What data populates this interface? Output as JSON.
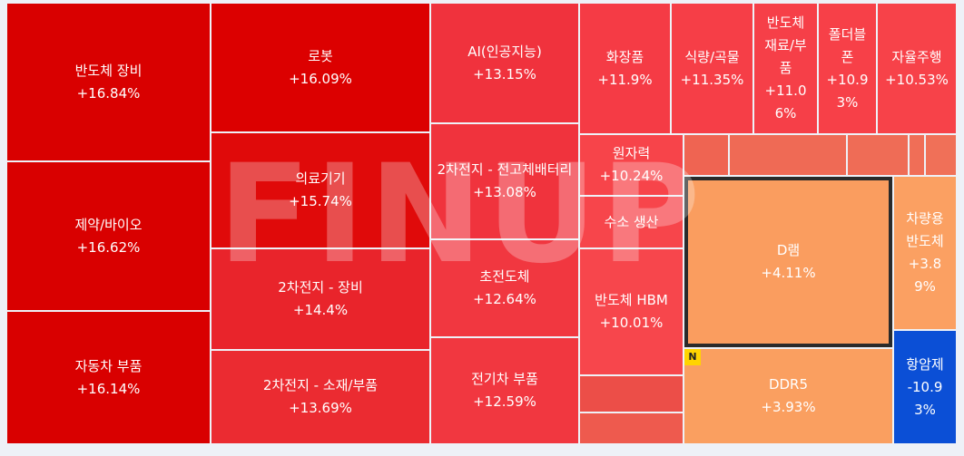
{
  "watermark": "FINUP",
  "tiles": [
    {
      "name": "반도체 장비",
      "change": "+16.84%"
    },
    {
      "name": "제약/바이오",
      "change": "+16.62%"
    },
    {
      "name": "자동차 부품",
      "change": "+16.14%"
    },
    {
      "name": "로봇",
      "change": "+16.09%"
    },
    {
      "name": "의료기기",
      "change": "+15.74%"
    },
    {
      "name": "2차전지 - 장비",
      "change": "+14.4%"
    },
    {
      "name": "2차전지 - 소재/부품",
      "change": "+13.69%"
    },
    {
      "name": "AI(인공지능)",
      "change": "+13.15%"
    },
    {
      "name": "2차전지 - 전고체배터리",
      "change": "+13.08%"
    },
    {
      "name": "초전도체",
      "change": "+12.64%"
    },
    {
      "name": "전기차 부품",
      "change": "+12.59%"
    },
    {
      "name": "화장품",
      "change": "+11.9%"
    },
    {
      "name": "식량/곡물",
      "change": "+11.35%"
    },
    {
      "name": "반도체 재료/부품",
      "change": "+11.06%"
    },
    {
      "name": "폴더블폰",
      "change": "+10.93%"
    },
    {
      "name": "자율주행",
      "change": "+10.53%"
    },
    {
      "name": "원자력",
      "change": "+10.24%"
    },
    {
      "name": "수소 생산"
    },
    {
      "name": "반도체 HBM",
      "change": "+10.01%"
    },
    {
      "name": "D램",
      "change": "+4.11%"
    },
    {
      "name": "DDR5",
      "change": "+3.93%",
      "badge": "N"
    },
    {
      "name": "차량용 반도체",
      "change": "+3.89%"
    },
    {
      "name": "항암제",
      "change": "-10.93%"
    }
  ]
}
